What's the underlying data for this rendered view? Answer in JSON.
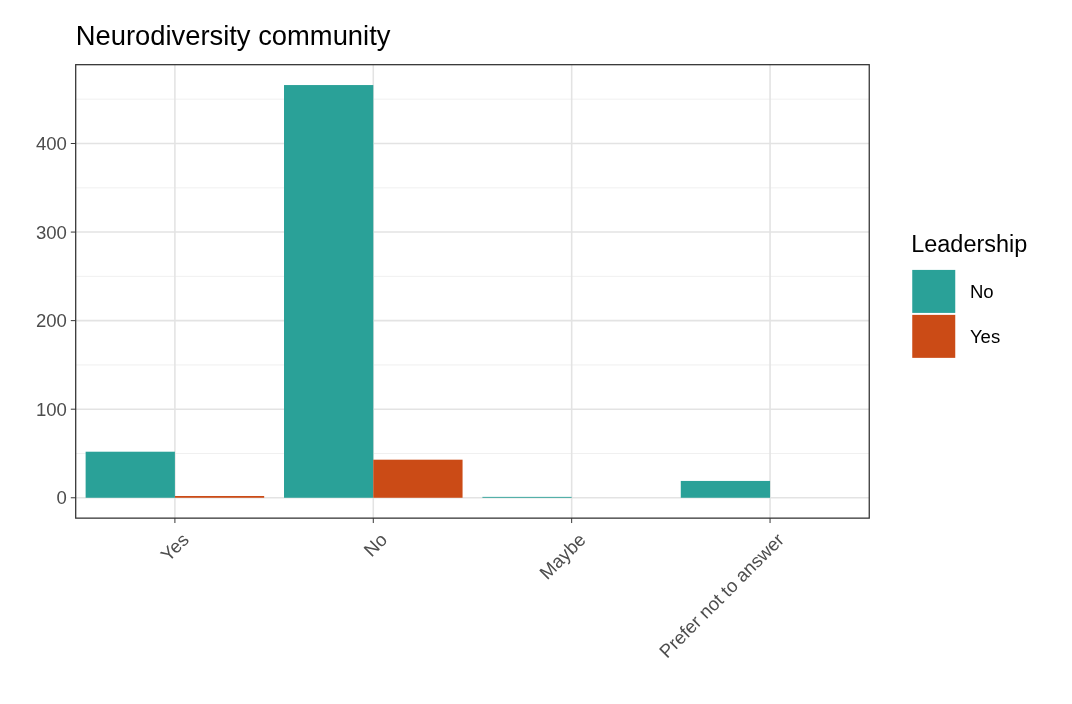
{
  "chart_data": {
    "type": "bar",
    "title": "Neurodiversity community",
    "legend_title": "Leadership",
    "categories": [
      "Yes",
      "No",
      "Maybe",
      "Prefer not to answer"
    ],
    "series": [
      {
        "name": "No",
        "color": "#2aa198",
        "values": [
          52,
          466,
          1,
          19
        ]
      },
      {
        "name": "Yes",
        "color": "#cb4b16",
        "values": [
          2,
          43,
          0,
          0
        ]
      }
    ],
    "ylim": [
      -23,
      489
    ],
    "yticks": [
      0,
      100,
      200,
      300,
      400
    ],
    "grid": true,
    "legend": "right"
  }
}
